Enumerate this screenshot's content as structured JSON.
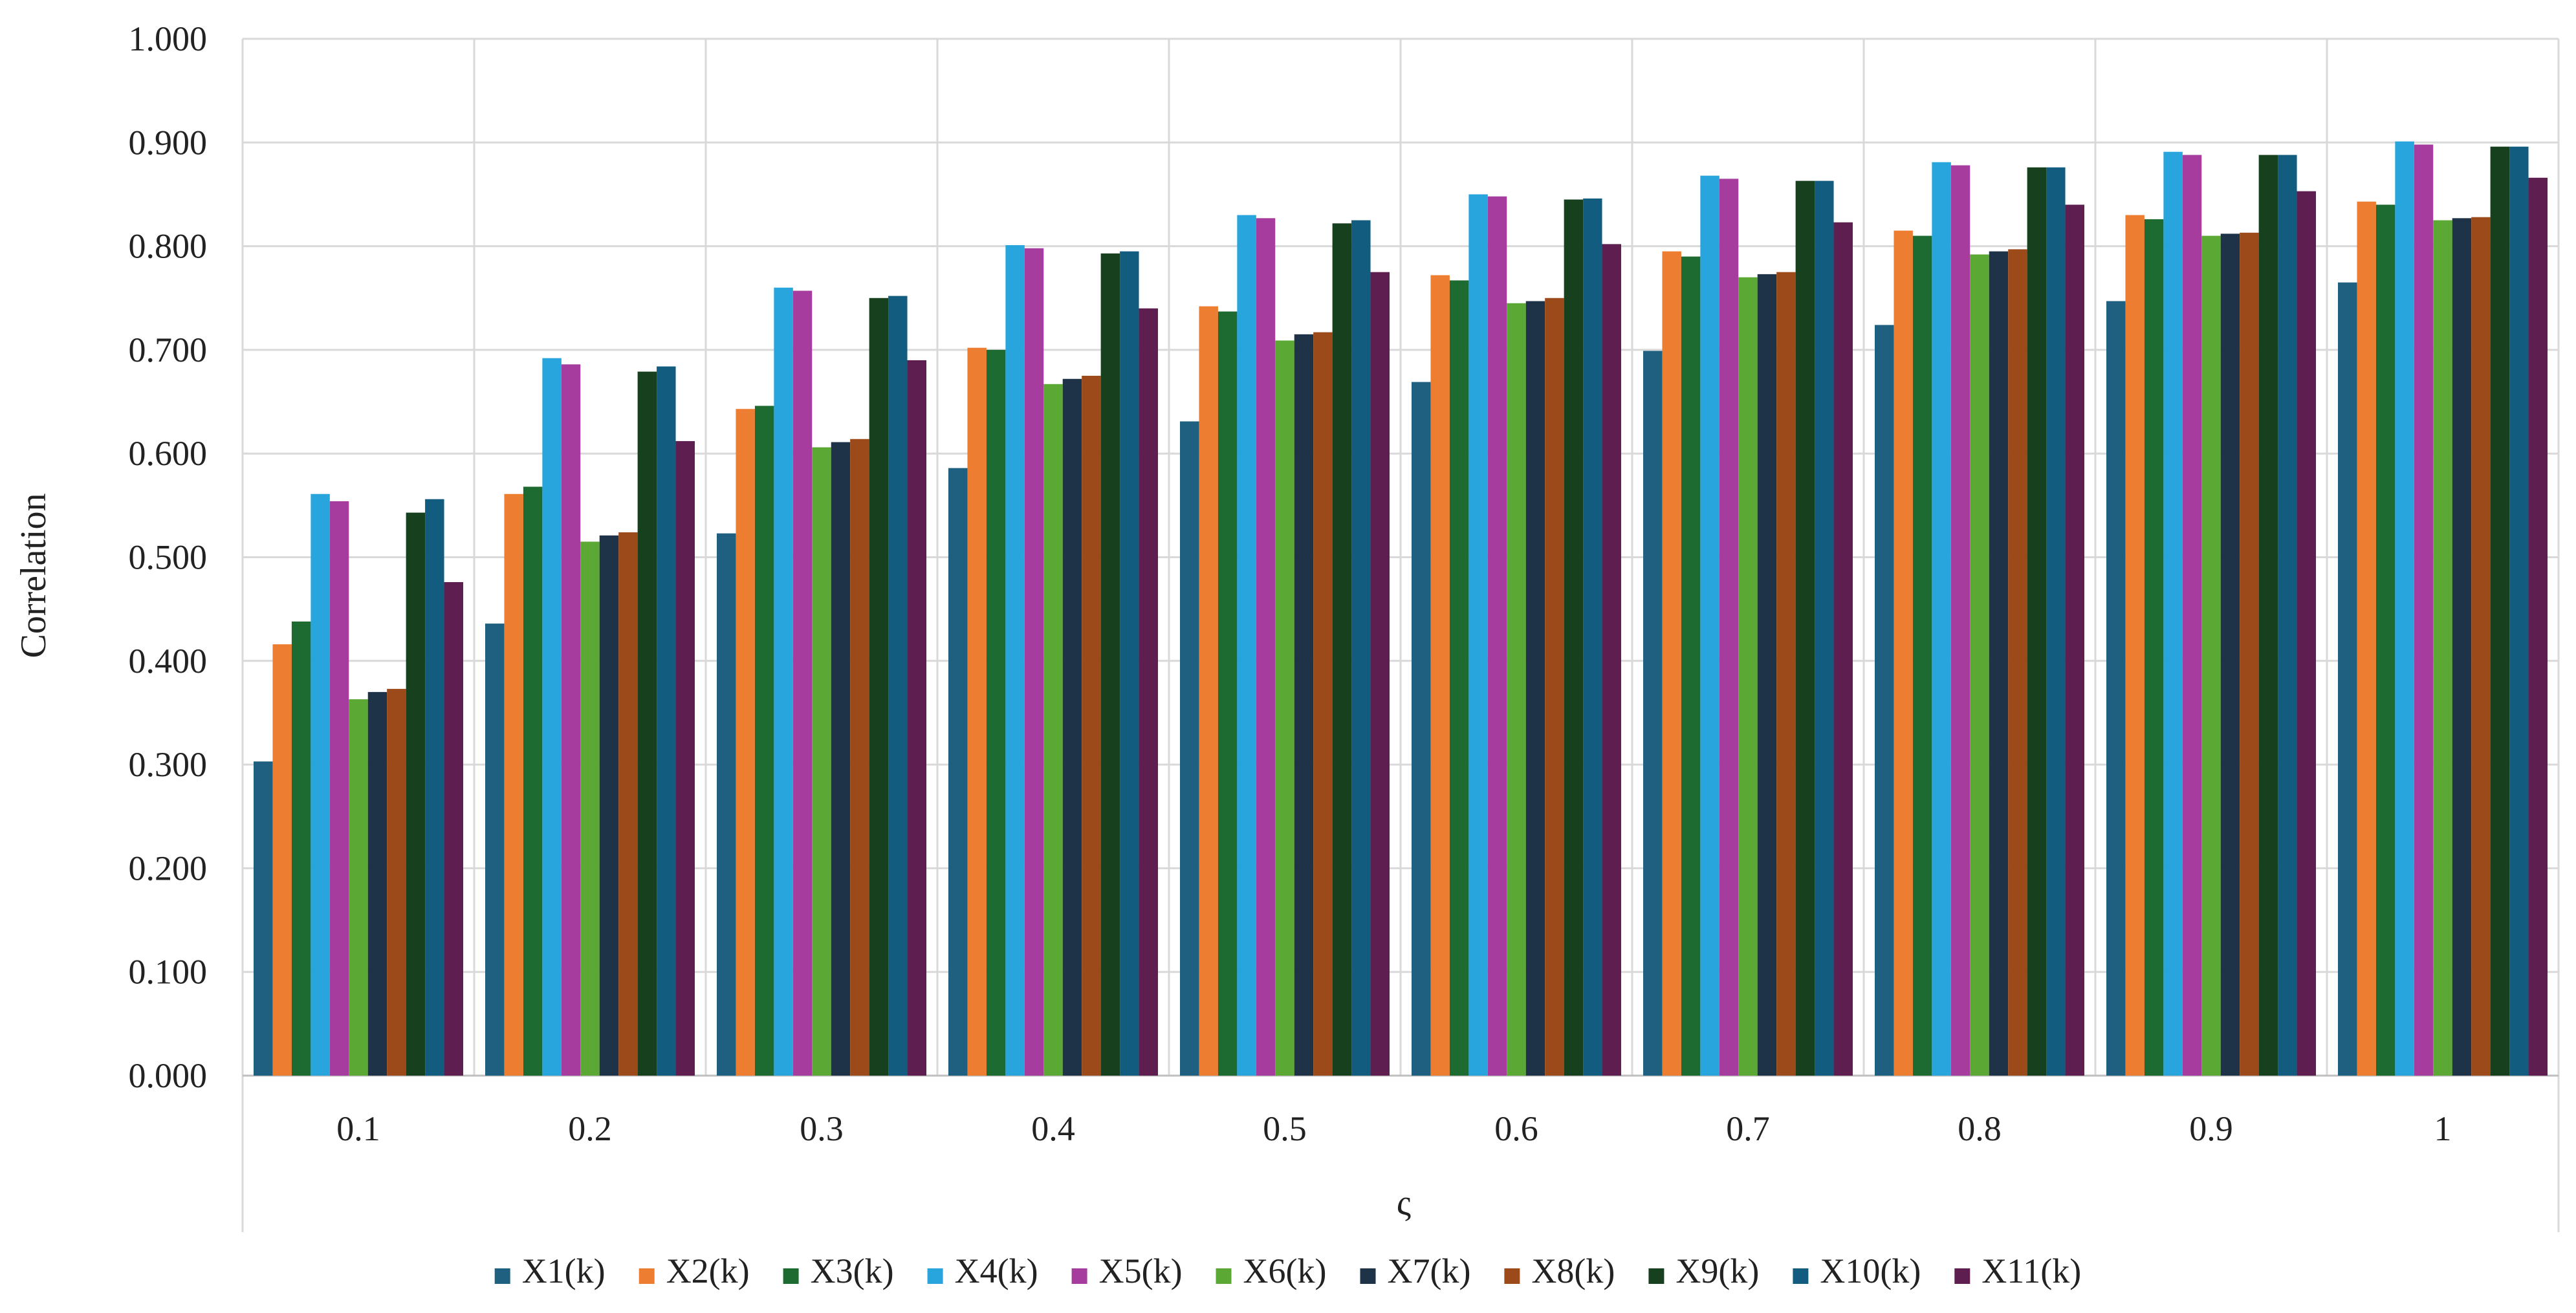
{
  "chart_data": {
    "type": "bar",
    "title": "",
    "xlabel": "ς",
    "ylabel": "Correlation",
    "ylim": [
      0,
      1
    ],
    "y_ticks": [
      "0.000",
      "0.100",
      "0.200",
      "0.300",
      "0.400",
      "0.500",
      "0.600",
      "0.700",
      "0.800",
      "0.900",
      "1.000"
    ],
    "grid": true,
    "legend_position": "bottom",
    "categories": [
      "0.1",
      "0.2",
      "0.3",
      "0.4",
      "0.5",
      "0.6",
      "0.7",
      "0.8",
      "0.9",
      "1"
    ],
    "series": [
      {
        "name": "X1(k)",
        "color": "#1f5f7f",
        "values": [
          0.303,
          0.436,
          0.523,
          0.586,
          0.631,
          0.669,
          0.699,
          0.724,
          0.747,
          0.765
        ]
      },
      {
        "name": "X2(k)",
        "color": "#ed7d31",
        "values": [
          0.416,
          0.561,
          0.643,
          0.702,
          0.742,
          0.772,
          0.795,
          0.815,
          0.83,
          0.843
        ]
      },
      {
        "name": "X3(k)",
        "color": "#1d6b30",
        "values": [
          0.438,
          0.568,
          0.646,
          0.7,
          0.737,
          0.767,
          0.79,
          0.81,
          0.826,
          0.84
        ]
      },
      {
        "name": "X4(k)",
        "color": "#27a5dc",
        "values": [
          0.561,
          0.692,
          0.76,
          0.801,
          0.83,
          0.85,
          0.868,
          0.881,
          0.891,
          0.901
        ]
      },
      {
        "name": "X5(k)",
        "color": "#a63c9e",
        "values": [
          0.554,
          0.686,
          0.757,
          0.798,
          0.827,
          0.848,
          0.865,
          0.878,
          0.888,
          0.898
        ]
      },
      {
        "name": "X6(k)",
        "color": "#5ba834",
        "values": [
          0.363,
          0.515,
          0.606,
          0.667,
          0.709,
          0.745,
          0.77,
          0.792,
          0.81,
          0.825
        ]
      },
      {
        "name": "X7(k)",
        "color": "#1e3347",
        "values": [
          0.37,
          0.521,
          0.611,
          0.672,
          0.715,
          0.747,
          0.773,
          0.795,
          0.812,
          0.827
        ]
      },
      {
        "name": "X8(k)",
        "color": "#9c4a1a",
        "values": [
          0.373,
          0.524,
          0.614,
          0.675,
          0.717,
          0.75,
          0.775,
          0.797,
          0.813,
          0.828
        ]
      },
      {
        "name": "X9(k)",
        "color": "#17401e",
        "values": [
          0.543,
          0.679,
          0.75,
          0.793,
          0.822,
          0.845,
          0.863,
          0.876,
          0.888,
          0.896
        ]
      },
      {
        "name": "X10(k)",
        "color": "#125c80",
        "values": [
          0.556,
          0.684,
          0.752,
          0.795,
          0.825,
          0.846,
          0.863,
          0.876,
          0.888,
          0.896
        ]
      },
      {
        "name": "X11(k)",
        "color": "#5e1e4f",
        "values": [
          0.476,
          0.612,
          0.69,
          0.74,
          0.775,
          0.802,
          0.823,
          0.84,
          0.853,
          0.866
        ]
      }
    ]
  }
}
